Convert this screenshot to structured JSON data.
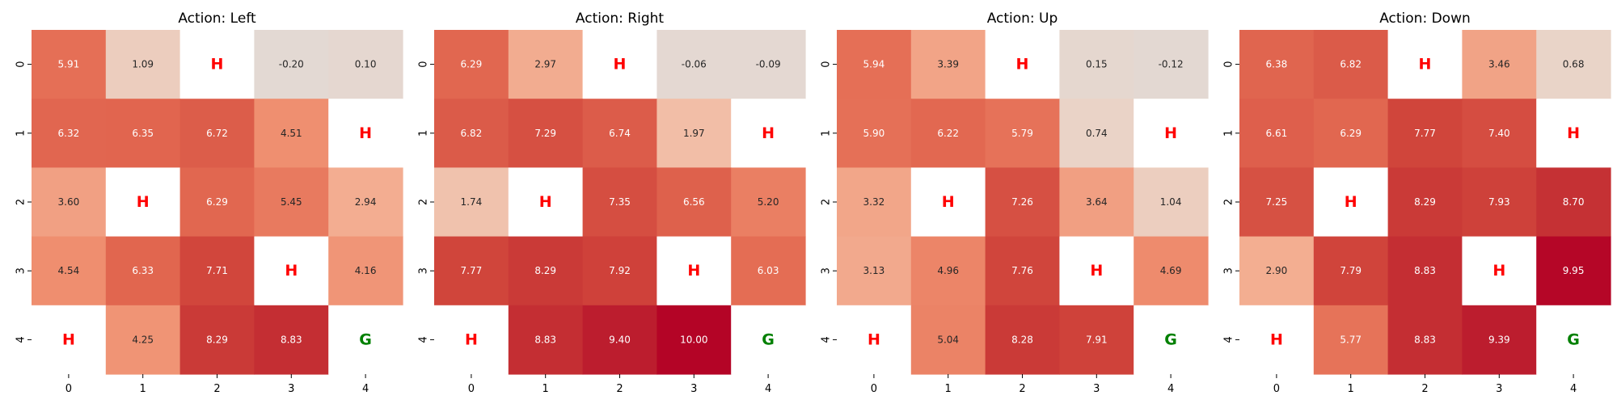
{
  "chart_data": [
    {
      "type": "heatmap",
      "title": "Action: Left",
      "x_ticks": [
        "0",
        "1",
        "2",
        "3",
        "4"
      ],
      "y_ticks": [
        "0",
        "1",
        "2",
        "3",
        "4"
      ],
      "vmin": -1,
      "vmax": 10,
      "colorscale": "coolwarm (upper half)",
      "cells": [
        [
          "5.91",
          "1.09",
          "H",
          "-0.20",
          "0.10"
        ],
        [
          "6.32",
          "6.35",
          "6.72",
          "4.51",
          "H"
        ],
        [
          "3.60",
          "H",
          "6.29",
          "5.45",
          "2.94"
        ],
        [
          "4.54",
          "6.33",
          "7.71",
          "H",
          "4.16"
        ],
        [
          "H",
          "4.25",
          "8.29",
          "8.83",
          "G"
        ]
      ]
    },
    {
      "type": "heatmap",
      "title": "Action: Right",
      "x_ticks": [
        "0",
        "1",
        "2",
        "3",
        "4"
      ],
      "y_ticks": [
        "0",
        "1",
        "2",
        "3",
        "4"
      ],
      "vmin": -1,
      "vmax": 10,
      "colorscale": "coolwarm (upper half)",
      "cells": [
        [
          "6.29",
          "2.97",
          "H",
          "-0.06",
          "-0.09"
        ],
        [
          "6.82",
          "7.29",
          "6.74",
          "1.97",
          "H"
        ],
        [
          "1.74",
          "H",
          "7.35",
          "6.56",
          "5.20"
        ],
        [
          "7.77",
          "8.29",
          "7.92",
          "H",
          "6.03"
        ],
        [
          "H",
          "8.83",
          "9.40",
          "10.00",
          "G"
        ]
      ]
    },
    {
      "type": "heatmap",
      "title": "Action: Up",
      "x_ticks": [
        "0",
        "1",
        "2",
        "3",
        "4"
      ],
      "y_ticks": [
        "0",
        "1",
        "2",
        "3",
        "4"
      ],
      "vmin": -1,
      "vmax": 10,
      "colorscale": "coolwarm (upper half)",
      "cells": [
        [
          "5.94",
          "3.39",
          "H",
          "0.15",
          "-0.12"
        ],
        [
          "5.90",
          "6.22",
          "5.79",
          "0.74",
          "H"
        ],
        [
          "3.32",
          "H",
          "7.26",
          "3.64",
          "1.04"
        ],
        [
          "3.13",
          "4.96",
          "7.76",
          "H",
          "4.69"
        ],
        [
          "H",
          "5.04",
          "8.28",
          "7.91",
          "G"
        ]
      ]
    },
    {
      "type": "heatmap",
      "title": "Action: Down",
      "x_ticks": [
        "0",
        "1",
        "2",
        "3",
        "4"
      ],
      "y_ticks": [
        "0",
        "1",
        "2",
        "3",
        "4"
      ],
      "vmin": -1,
      "vmax": 10,
      "colorscale": "coolwarm (upper half)",
      "cells": [
        [
          "6.38",
          "6.82",
          "H",
          "3.46",
          "0.68"
        ],
        [
          "6.61",
          "6.29",
          "7.77",
          "7.40",
          "H"
        ],
        [
          "7.25",
          "H",
          "8.29",
          "7.93",
          "8.70"
        ],
        [
          "2.90",
          "7.79",
          "8.83",
          "H",
          "9.95"
        ],
        [
          "H",
          "5.77",
          "8.83",
          "9.39",
          "G"
        ]
      ]
    }
  ],
  "colors": {
    "hole_text": "#ff0000",
    "goal_text": "#008000",
    "dark_cell_text": "#ffffff",
    "light_cell_text": "#262626",
    "empty_cell": "#ffffff"
  }
}
